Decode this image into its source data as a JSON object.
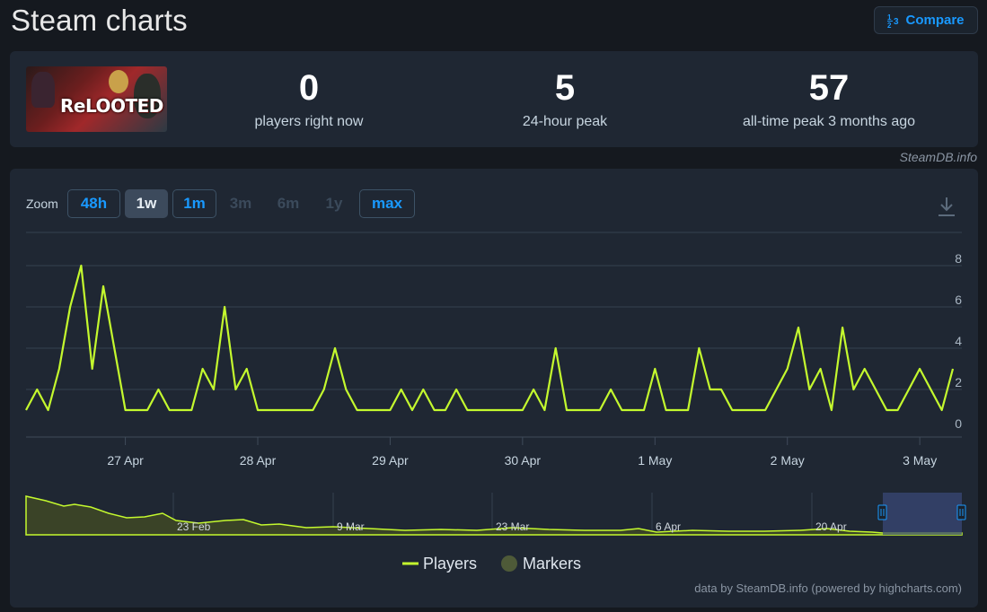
{
  "header": {
    "title": "Steam charts",
    "compare_label": "Compare",
    "compare_icon_top": "1",
    "compare_icon_bottom": "2",
    "compare_icon_right": "3"
  },
  "game": {
    "logo_text": "ReLOOTED"
  },
  "stats": [
    {
      "value": "0",
      "label": "players right now"
    },
    {
      "value": "5",
      "label": "24-hour peak"
    },
    {
      "value": "57",
      "label": "all-time peak 3 months ago"
    }
  ],
  "credit_top": "SteamDB.info",
  "zoom": {
    "label": "Zoom",
    "buttons": [
      {
        "label": "48h",
        "state": "active"
      },
      {
        "label": "1w",
        "state": "selected"
      },
      {
        "label": "1m",
        "state": "active"
      },
      {
        "label": "3m",
        "state": "disabled"
      },
      {
        "label": "6m",
        "state": "disabled"
      },
      {
        "label": "1y",
        "state": "disabled"
      },
      {
        "label": "max",
        "state": "active"
      }
    ]
  },
  "legend": {
    "players": "Players",
    "markers": "Markers"
  },
  "credit_bottom": "data by SteamDB.info (powered by highcharts.com)",
  "colors": {
    "line": "#c4f92e",
    "navigator_fill": "#3a4327",
    "marker": "#4e5a38",
    "selection": "#3a4a7a"
  },
  "chart_data": {
    "type": "line",
    "series": [
      {
        "name": "Players",
        "x": [
          "26 Apr 06:00",
          "26 Apr 08:00",
          "26 Apr 10:00",
          "26 Apr 12:00",
          "26 Apr 14:00",
          "26 Apr 16:00",
          "26 Apr 18:00",
          "26 Apr 20:00",
          "26 Apr 22:00",
          "27 Apr 00:00",
          "27 Apr 02:00",
          "27 Apr 04:00",
          "27 Apr 06:00",
          "27 Apr 08:00",
          "27 Apr 10:00",
          "27 Apr 12:00",
          "27 Apr 14:00",
          "27 Apr 16:00",
          "27 Apr 18:00",
          "27 Apr 20:00",
          "27 Apr 22:00",
          "28 Apr 00:00",
          "28 Apr 02:00",
          "28 Apr 04:00",
          "28 Apr 06:00",
          "28 Apr 08:00",
          "28 Apr 10:00",
          "28 Apr 12:00",
          "28 Apr 14:00",
          "28 Apr 16:00",
          "28 Apr 18:00",
          "28 Apr 20:00",
          "28 Apr 22:00",
          "29 Apr 00:00",
          "29 Apr 02:00",
          "29 Apr 04:00",
          "29 Apr 06:00",
          "29 Apr 08:00",
          "29 Apr 10:00",
          "29 Apr 12:00",
          "29 Apr 14:00",
          "29 Apr 16:00",
          "29 Apr 18:00",
          "29 Apr 20:00",
          "29 Apr 22:00",
          "30 Apr 00:00",
          "30 Apr 02:00",
          "30 Apr 04:00",
          "30 Apr 06:00",
          "30 Apr 08:00",
          "30 Apr 10:00",
          "30 Apr 12:00",
          "30 Apr 14:00",
          "30 Apr 16:00",
          "30 Apr 18:00",
          "30 Apr 20:00",
          "30 Apr 22:00",
          "1 May 00:00",
          "1 May 02:00",
          "1 May 04:00",
          "1 May 06:00",
          "1 May 08:00",
          "1 May 10:00",
          "1 May 12:00",
          "1 May 14:00",
          "1 May 16:00",
          "1 May 18:00",
          "1 May 20:00",
          "1 May 22:00",
          "2 May 00:00",
          "2 May 02:00",
          "2 May 04:00",
          "2 May 06:00",
          "2 May 08:00",
          "2 May 10:00",
          "2 May 12:00",
          "2 May 14:00",
          "2 May 16:00",
          "2 May 18:00",
          "2 May 20:00",
          "2 May 22:00",
          "3 May 00:00",
          "3 May 02:00",
          "3 May 04:00",
          "3 May 06:00"
        ],
        "values": [
          1,
          2,
          1,
          3,
          6,
          8,
          3,
          7,
          4,
          1,
          1,
          1,
          2,
          1,
          1,
          1,
          3,
          2,
          6,
          2,
          3,
          1,
          1,
          1,
          1,
          1,
          1,
          2,
          4,
          2,
          1,
          1,
          1,
          1,
          2,
          1,
          2,
          1,
          1,
          2,
          1,
          1,
          1,
          1,
          1,
          1,
          2,
          1,
          4,
          1,
          1,
          1,
          1,
          2,
          1,
          1,
          1,
          3,
          1,
          1,
          1,
          4,
          2,
          2,
          1,
          1,
          1,
          1,
          2,
          3,
          5,
          2,
          3,
          1,
          5,
          2,
          3,
          2,
          1,
          1,
          2,
          3,
          2,
          1,
          3
        ]
      }
    ],
    "ylim": [
      0,
      8
    ],
    "yticks": [
      0,
      2,
      4,
      6,
      8
    ],
    "xticks": [
      "27 Apr",
      "28 Apr",
      "29 Apr",
      "30 Apr",
      "1 May",
      "2 May",
      "3 May"
    ],
    "navigator_labels": [
      "23 Feb",
      "9 Mar",
      "23 Mar",
      "6 Apr",
      "20 Apr"
    ],
    "grid": true
  }
}
